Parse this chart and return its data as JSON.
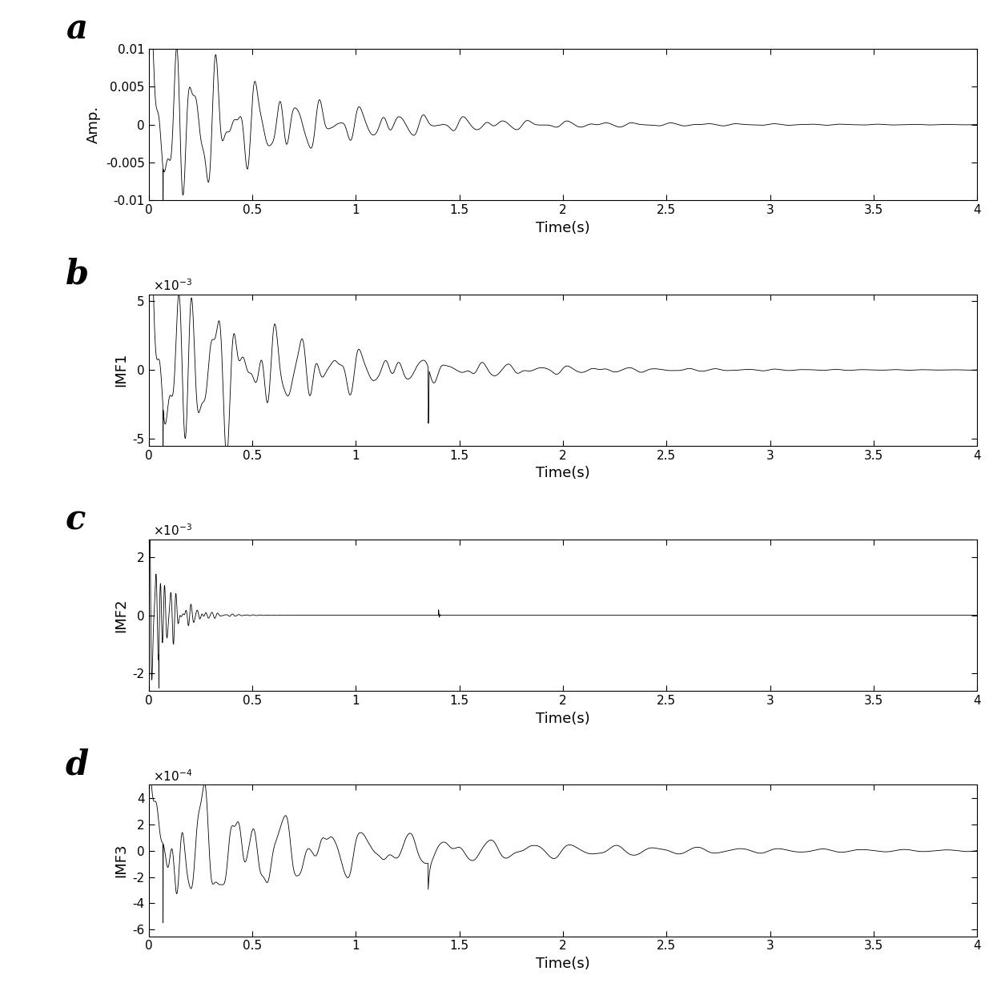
{
  "panels": [
    "a",
    "b",
    "c",
    "d"
  ],
  "ylabels": [
    "Amp.",
    "IMF1",
    "IMF2",
    "IMF3"
  ],
  "xlabel": "Time(s)",
  "xlim": [
    0,
    4
  ],
  "xticks": [
    0,
    0.5,
    1,
    1.5,
    2,
    2.5,
    3,
    3.5,
    4
  ],
  "xticklabels": [
    "0",
    "0.5",
    "1",
    "1.5",
    "2",
    "2.5",
    "3",
    "3.5",
    "4"
  ],
  "panel_a": {
    "ylim": [
      -0.01,
      0.01
    ],
    "yticks": [
      -0.01,
      -0.005,
      0,
      0.005,
      0.01
    ],
    "yticklabels": [
      "-0.01",
      "-0.005",
      "0",
      "0.005",
      "0.01"
    ],
    "scale_label": null
  },
  "panel_b": {
    "ylim": [
      -0.0055,
      0.0055
    ],
    "yticks": [
      -0.005,
      0,
      0.005
    ],
    "yticklabels": [
      "-5",
      "0",
      "5"
    ],
    "scale_label": "x10^{-3}"
  },
  "panel_c": {
    "ylim": [
      -0.0026,
      0.0026
    ],
    "yticks": [
      -0.002,
      0,
      0.002
    ],
    "yticklabels": [
      "-2",
      "0",
      "2"
    ],
    "scale_label": "x10^{-3}"
  },
  "panel_d": {
    "ylim": [
      -0.00065,
      0.0005
    ],
    "yticks": [
      -0.0006,
      -0.0004,
      -0.0002,
      0,
      0.0002,
      0.0004
    ],
    "yticklabels": [
      "-6",
      "-4",
      "-2",
      "0",
      "2",
      "4"
    ],
    "scale_label": "x10^{-4}"
  },
  "line_color": "#000000",
  "line_width": 0.6,
  "background_color": "#ffffff",
  "panel_label_fontsize": 30,
  "axis_label_fontsize": 13,
  "tick_fontsize": 11
}
